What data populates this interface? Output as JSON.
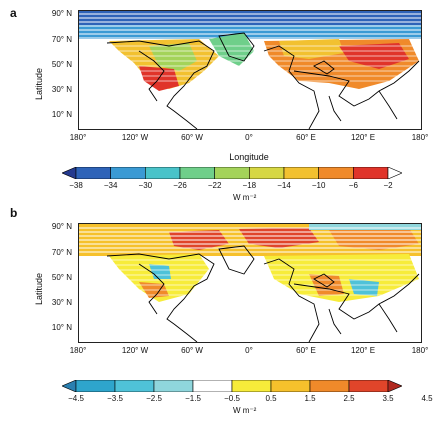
{
  "panels": [
    {
      "label": "a",
      "y_axis_title": "Latitude",
      "x_axis_title": "Longitude",
      "lat_ticks": [
        "90° N",
        "70° N",
        "50° N",
        "30° N",
        "10° N"
      ],
      "lon_ticks": [
        "180°",
        "120° W",
        "60° W",
        "0°",
        "60° E",
        "120° E",
        "180°"
      ],
      "colorbar": {
        "labels": [
          "−38",
          "−34",
          "−30",
          "−26",
          "−22",
          "−18",
          "−14",
          "−10",
          "−6",
          "−2"
        ],
        "colors": [
          "#243a8f",
          "#2e63b8",
          "#3a9ad4",
          "#49c3c9",
          "#6fcf8a",
          "#a4d35a",
          "#d6d743",
          "#f2c130",
          "#f08a2a",
          "#e0342a",
          "#ffffff"
        ],
        "unit": "W m⁻²"
      }
    },
    {
      "label": "b",
      "y_axis_title": "Latitude",
      "lat_ticks": [
        "90° N",
        "70° N",
        "50° N",
        "30° N",
        "10° N"
      ],
      "lon_ticks": [
        "180°",
        "120° W",
        "60° W",
        "0°",
        "60° E",
        "120° E",
        "180°"
      ],
      "colorbar": {
        "labels": [
          "−4.5",
          "−3.5",
          "−2.5",
          "−1.5",
          "−0.5",
          "0.5",
          "1.5",
          "2.5",
          "3.5",
          "4.5"
        ],
        "colors": [
          "#2a7fb0",
          "#2ea5cc",
          "#4fc2d8",
          "#8fd6dc",
          "#ffffff",
          "#f7ec3a",
          "#f6c12c",
          "#f08a2a",
          "#e0452a",
          "#b0281f"
        ],
        "unit": "W m⁻²"
      }
    }
  ]
}
